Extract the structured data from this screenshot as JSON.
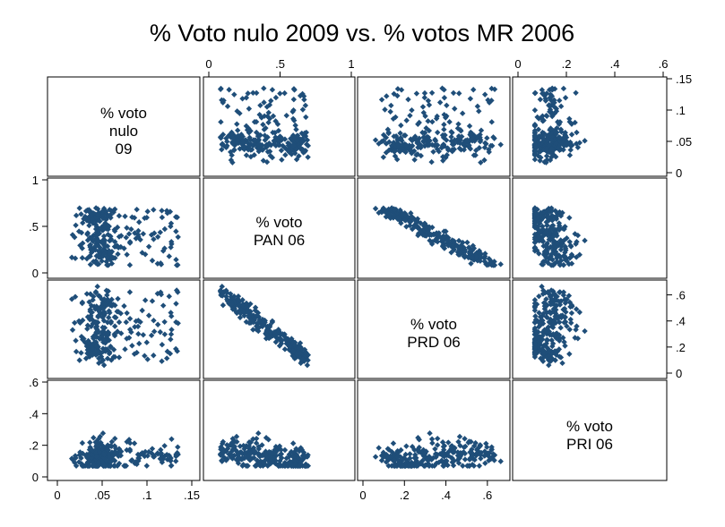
{
  "chart_data": {
    "type": "scatter-matrix",
    "title": "% Voto nulo 2009 vs. % votos MR 2006",
    "marker_color": "#1f4e79",
    "variables": [
      {
        "label": [
          "% voto",
          "nulo",
          "09"
        ],
        "range": [
          0,
          0.15
        ],
        "ticks": [
          0,
          0.05,
          0.1,
          0.15
        ],
        "tick_labels": [
          "0",
          ".05",
          ".1",
          ".15"
        ]
      },
      {
        "label": [
          "% voto",
          "PAN 06"
        ],
        "range": [
          0,
          1
        ],
        "ticks": [
          0,
          0.5,
          1
        ],
        "tick_labels": [
          "0",
          ".5",
          "1"
        ]
      },
      {
        "label": [
          "% voto",
          "PRD 06"
        ],
        "range": [
          0,
          0.7
        ],
        "ticks": [
          0,
          0.2,
          0.4,
          0.6
        ],
        "tick_labels": [
          "0",
          ".2",
          ".4",
          ".6"
        ]
      },
      {
        "label": [
          "% voto",
          "PRI 06"
        ],
        "range": [
          0,
          0.6
        ],
        "ticks": [
          0,
          0.2,
          0.4,
          0.6
        ],
        "tick_labels": [
          "0",
          ".2",
          ".4",
          ".6"
        ]
      }
    ],
    "n_points_drawn": 260,
    "grid": false,
    "legend": "none"
  }
}
